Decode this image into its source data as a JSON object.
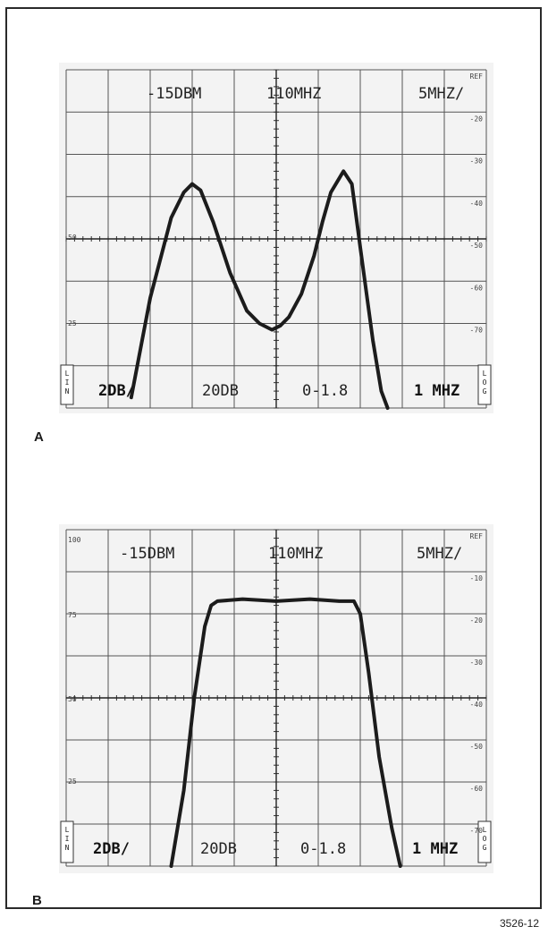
{
  "figure_id": "3526-12",
  "chart_data": [
    {
      "panel": "A",
      "type": "line",
      "readout_top": {
        "reference_level": "-15DBM",
        "center_frequency": "110MHZ",
        "span_per_div": "5MHZ/"
      },
      "readout_bottom": {
        "vertical_scale": "2DB/",
        "rf_attenuation": "20DB",
        "freq_range": "0-1.8",
        "resolution_bw": "1 MHZ"
      },
      "mode_lin": "LIN",
      "mode_log": "LOG",
      "left_scale": [
        "50",
        "25"
      ],
      "right_scale": [
        "REF",
        "-20",
        "-30",
        "-40",
        "-50",
        "-60",
        "-70"
      ],
      "xlim": [
        0,
        10
      ],
      "ylim": [
        0,
        8
      ],
      "grid": true,
      "series": [
        {
          "x": [
            1.55,
            2.0,
            2.5,
            2.8,
            3.0,
            3.2,
            3.5,
            3.9,
            4.3,
            4.6,
            4.9,
            5.1,
            5.3,
            5.6,
            5.9,
            6.1,
            6.3,
            6.6,
            6.8,
            7.0,
            7.3,
            7.5,
            7.65
          ],
          "y": [
            0.25,
            2.6,
            4.5,
            5.1,
            5.3,
            5.15,
            4.4,
            3.2,
            2.3,
            2.0,
            1.85,
            1.95,
            2.15,
            2.7,
            3.6,
            4.4,
            5.1,
            5.6,
            5.3,
            3.8,
            1.6,
            0.4,
            0.0
          ]
        }
      ]
    },
    {
      "panel": "B",
      "type": "line",
      "readout_top": {
        "reference_level": "-15DBM",
        "center_frequency": "110MHZ",
        "span_per_div": "5MHZ/"
      },
      "readout_bottom": {
        "vertical_scale": "2DB/",
        "rf_attenuation": "20DB",
        "freq_range": "0-1.8",
        "resolution_bw": "1 MHZ"
      },
      "mode_lin": "LIN",
      "mode_log": "LOG",
      "left_scale": [
        "100",
        "75",
        "50",
        "25"
      ],
      "right_scale": [
        "REF",
        "-10",
        "-20",
        "-30",
        "-40",
        "-50",
        "-60",
        "-70"
      ],
      "xlim": [
        0,
        10
      ],
      "ylim": [
        0,
        8
      ],
      "grid": true,
      "series": [
        {
          "x": [
            2.5,
            2.8,
            3.05,
            3.3,
            3.45,
            3.6,
            4.2,
            5.0,
            5.8,
            6.5,
            6.85,
            7.0,
            7.2,
            7.45,
            7.75,
            7.95
          ],
          "y": [
            0.0,
            1.8,
            4.0,
            5.7,
            6.2,
            6.3,
            6.35,
            6.3,
            6.35,
            6.3,
            6.3,
            6.0,
            4.6,
            2.6,
            0.9,
            0.0
          ]
        }
      ]
    }
  ],
  "labels": {
    "panel_a": "A",
    "panel_b": "B"
  }
}
